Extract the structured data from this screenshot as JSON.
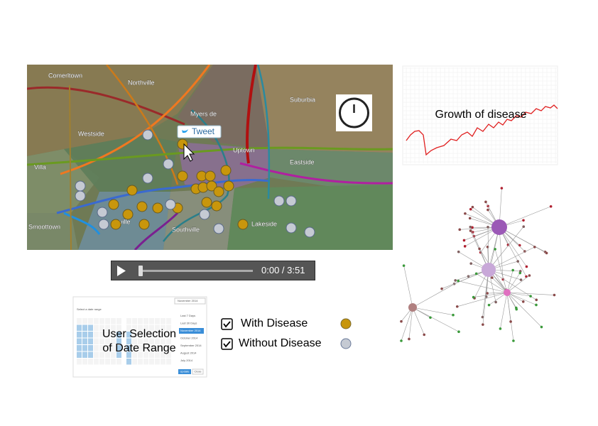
{
  "map": {
    "place_labels": [
      "Comerltown",
      "Northville",
      "Suburbia",
      "Westside",
      "Myers de",
      "Uptown",
      "Eastside",
      "Villa",
      "Smoottown",
      "ville",
      "Southville",
      "Lakeside"
    ],
    "tweet_button": "Tweet"
  },
  "video": {
    "time": "0:00 / 3:51"
  },
  "growth_chart": {
    "title": "Growth of disease"
  },
  "date_picker": {
    "caption_lines": [
      "User Selection",
      "of Date Range"
    ],
    "header": "Select a date range",
    "month_button": "November 2014",
    "presets": [
      "Last 7 Days",
      "Last 30 Days",
      "November 2014",
      "October 2014",
      "September 2014",
      "August 2014",
      "July 2014"
    ],
    "buttons": [
      "Update",
      "Close"
    ]
  },
  "legend": {
    "items": [
      "With Disease",
      "Without Disease"
    ]
  }
}
